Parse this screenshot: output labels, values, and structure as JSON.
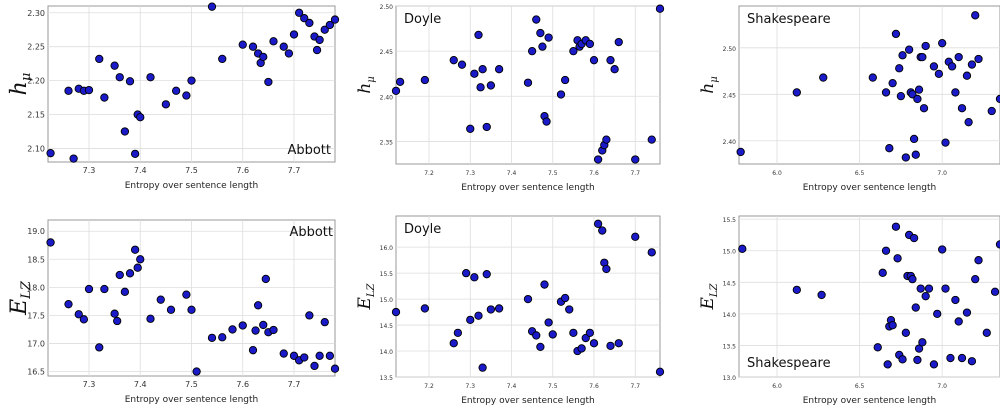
{
  "colors": {
    "point_fill": "#1a1ac8",
    "point_stroke": "#000000",
    "grid": "#dddddd",
    "frame": "#999999"
  },
  "chart_data": [
    {
      "type": "scatter",
      "annotation": "Abbott",
      "annotation_position": "bottom-right",
      "xlabel": "Entropy over sentence length",
      "ylabel": "h",
      "ylabel_sub": "μ",
      "xlim": [
        7.22,
        7.78
      ],
      "ylim": [
        2.08,
        2.31
      ],
      "xticks": [
        "7.3",
        "7.4",
        "7.5",
        "7.6",
        "7.7"
      ],
      "xtick_values": [
        7.3,
        7.4,
        7.5,
        7.6,
        7.7
      ],
      "yticks": [
        "2.10",
        "2.15",
        "2.20",
        "2.25",
        "2.30"
      ],
      "ytick_values": [
        2.1,
        2.15,
        2.2,
        2.25,
        2.3
      ],
      "grid": true,
      "x": [
        7.225,
        7.26,
        7.27,
        7.28,
        7.29,
        7.3,
        7.32,
        7.33,
        7.35,
        7.36,
        7.37,
        7.38,
        7.39,
        7.395,
        7.4,
        7.42,
        7.45,
        7.47,
        7.49,
        7.5,
        7.54,
        7.56,
        7.6,
        7.62,
        7.63,
        7.635,
        7.64,
        7.65,
        7.66,
        7.68,
        7.69,
        7.7,
        7.71,
        7.72,
        7.73,
        7.74,
        7.745,
        7.75,
        7.76,
        7.77,
        7.78
      ],
      "y": [
        2.093,
        2.185,
        2.085,
        2.188,
        2.185,
        2.186,
        2.232,
        2.175,
        2.222,
        2.205,
        2.125,
        2.199,
        2.092,
        2.15,
        2.146,
        2.205,
        2.165,
        2.185,
        2.178,
        2.2,
        2.309,
        2.232,
        2.253,
        2.25,
        2.24,
        2.226,
        2.235,
        2.198,
        2.258,
        2.25,
        2.24,
        2.268,
        2.3,
        2.292,
        2.285,
        2.265,
        2.245,
        2.26,
        2.275,
        2.282,
        2.29
      ]
    },
    {
      "type": "scatter",
      "annotation": "Doyle",
      "annotation_position": "top-left",
      "xlabel": "Entropy over sentence length",
      "ylabel": "h",
      "ylabel_sub": "μ",
      "xlim": [
        7.12,
        7.76
      ],
      "ylim": [
        2.325,
        2.5
      ],
      "xticks": [
        "7.2",
        "7.3",
        "7.4",
        "7.5",
        "7.6",
        "7.7"
      ],
      "xtick_values": [
        7.2,
        7.3,
        7.4,
        7.5,
        7.6,
        7.7
      ],
      "yticks": [
        "2.35",
        "2.40",
        "2.45",
        "2.50"
      ],
      "ytick_values": [
        2.35,
        2.4,
        2.45,
        2.5
      ],
      "grid": true,
      "x": [
        7.12,
        7.13,
        7.19,
        7.26,
        7.28,
        7.3,
        7.31,
        7.32,
        7.325,
        7.33,
        7.34,
        7.35,
        7.37,
        7.44,
        7.45,
        7.46,
        7.47,
        7.475,
        7.48,
        7.485,
        7.49,
        7.52,
        7.53,
        7.55,
        7.56,
        7.565,
        7.57,
        7.58,
        7.59,
        7.6,
        7.61,
        7.62,
        7.625,
        7.63,
        7.64,
        7.65,
        7.66,
        7.7,
        7.74,
        7.76
      ],
      "y": [
        2.406,
        2.416,
        2.418,
        2.44,
        2.435,
        2.364,
        2.425,
        2.468,
        2.41,
        2.43,
        2.366,
        2.412,
        2.43,
        2.415,
        2.45,
        2.485,
        2.47,
        2.455,
        2.378,
        2.372,
        2.465,
        2.402,
        2.418,
        2.45,
        2.462,
        2.455,
        2.458,
        2.462,
        2.458,
        2.44,
        2.33,
        2.34,
        2.346,
        2.352,
        2.44,
        2.43,
        2.46,
        2.33,
        2.352,
        2.497
      ]
    },
    {
      "type": "scatter",
      "annotation": "Shakespeare",
      "annotation_position": "top-left",
      "xlabel": "Entropy over sentence length",
      "ylabel": "h",
      "ylabel_sub": "μ",
      "xlim": [
        5.77,
        7.35
      ],
      "ylim": [
        2.375,
        2.545
      ],
      "xticks": [
        "6.0",
        "6.5",
        "7.0"
      ],
      "xtick_values": [
        6.0,
        6.5,
        7.0
      ],
      "yticks": [
        "2.40",
        "2.45",
        "2.50"
      ],
      "ytick_values": [
        2.4,
        2.45,
        2.5
      ],
      "grid": true,
      "x": [
        5.78,
        6.12,
        6.28,
        6.58,
        6.66,
        6.68,
        6.7,
        6.72,
        6.74,
        6.75,
        6.76,
        6.78,
        6.8,
        6.81,
        6.82,
        6.83,
        6.84,
        6.85,
        6.86,
        6.87,
        6.88,
        6.89,
        6.9,
        6.95,
        6.98,
        7.0,
        7.02,
        7.04,
        7.06,
        7.08,
        7.1,
        7.12,
        7.15,
        7.16,
        7.18,
        7.2,
        7.22,
        7.3,
        7.35
      ],
      "y": [
        2.388,
        2.452,
        2.468,
        2.468,
        2.452,
        2.392,
        2.462,
        2.515,
        2.478,
        2.448,
        2.492,
        2.382,
        2.498,
        2.452,
        2.45,
        2.402,
        2.385,
        2.445,
        2.455,
        2.49,
        2.49,
        2.435,
        2.502,
        2.48,
        2.472,
        2.505,
        2.398,
        2.485,
        2.48,
        2.452,
        2.49,
        2.435,
        2.47,
        2.42,
        2.482,
        2.535,
        2.488,
        2.432,
        2.445
      ]
    },
    {
      "type": "scatter",
      "annotation": "Abbott",
      "annotation_position": "top-right",
      "xlabel": "Entropy over sentence length",
      "ylabel": "E",
      "ylabel_sub": "LZ",
      "xlim": [
        7.22,
        7.78
      ],
      "ylim": [
        16.42,
        19.2
      ],
      "xticks": [
        "7.3",
        "7.4",
        "7.5",
        "7.6",
        "7.7"
      ],
      "xtick_values": [
        7.3,
        7.4,
        7.5,
        7.6,
        7.7
      ],
      "yticks": [
        "16.5",
        "17.0",
        "17.5",
        "18.0",
        "18.5",
        "19.0"
      ],
      "ytick_values": [
        16.5,
        17.0,
        17.5,
        18.0,
        18.5,
        19.0
      ],
      "grid": true,
      "x": [
        7.225,
        7.26,
        7.28,
        7.29,
        7.3,
        7.32,
        7.33,
        7.35,
        7.355,
        7.36,
        7.37,
        7.38,
        7.39,
        7.395,
        7.4,
        7.42,
        7.44,
        7.46,
        7.49,
        7.5,
        7.51,
        7.54,
        7.56,
        7.58,
        7.6,
        7.62,
        7.625,
        7.63,
        7.64,
        7.645,
        7.65,
        7.66,
        7.68,
        7.7,
        7.71,
        7.72,
        7.73,
        7.74,
        7.75,
        7.76,
        7.77,
        7.78
      ],
      "y": [
        18.8,
        17.7,
        17.52,
        17.43,
        17.97,
        16.93,
        17.97,
        17.53,
        17.4,
        18.22,
        17.92,
        18.25,
        18.67,
        18.35,
        18.5,
        17.44,
        17.78,
        17.6,
        17.87,
        17.6,
        16.5,
        17.1,
        17.11,
        17.25,
        17.32,
        16.88,
        17.23,
        17.68,
        17.33,
        18.15,
        17.2,
        17.24,
        16.82,
        16.78,
        16.7,
        16.75,
        17.5,
        16.6,
        16.78,
        17.38,
        16.78,
        16.55
      ]
    },
    {
      "type": "scatter",
      "annotation": "Doyle",
      "annotation_position": "top-left",
      "xlabel": "Entropy over sentence length",
      "ylabel": "E",
      "ylabel_sub": "LZ",
      "xlim": [
        7.12,
        7.76
      ],
      "ylim": [
        13.5,
        16.6
      ],
      "xticks": [
        "7.2",
        "7.3",
        "7.4",
        "7.5",
        "7.6",
        "7.7"
      ],
      "xtick_values": [
        7.2,
        7.3,
        7.4,
        7.5,
        7.6,
        7.7
      ],
      "yticks": [
        "13.5",
        "14.0",
        "14.5",
        "15.0",
        "15.5",
        "16.0"
      ],
      "ytick_values": [
        13.5,
        14.0,
        14.5,
        15.0,
        15.5,
        16.0
      ],
      "grid": true,
      "x": [
        7.12,
        7.19,
        7.26,
        7.27,
        7.29,
        7.3,
        7.31,
        7.32,
        7.33,
        7.34,
        7.35,
        7.37,
        7.44,
        7.45,
        7.46,
        7.47,
        7.48,
        7.49,
        7.5,
        7.52,
        7.53,
        7.54,
        7.55,
        7.56,
        7.57,
        7.58,
        7.59,
        7.6,
        7.61,
        7.62,
        7.625,
        7.63,
        7.64,
        7.66,
        7.7,
        7.74,
        7.76
      ],
      "y": [
        14.75,
        14.82,
        14.15,
        14.35,
        15.5,
        14.6,
        15.42,
        14.68,
        13.68,
        15.48,
        14.8,
        14.82,
        15.0,
        14.38,
        14.3,
        14.08,
        15.28,
        14.55,
        14.32,
        14.95,
        15.02,
        14.8,
        14.35,
        14.0,
        14.05,
        14.25,
        14.35,
        14.15,
        16.45,
        16.32,
        15.7,
        15.58,
        14.1,
        14.15,
        16.2,
        15.9,
        13.6
      ]
    },
    {
      "type": "scatter",
      "annotation": "Shakespeare",
      "annotation_position": "bottom-left",
      "xlabel": "Entropy over sentence length",
      "ylabel": "E",
      "ylabel_sub": "LZ",
      "xlim": [
        5.77,
        7.35
      ],
      "ylim": [
        13.0,
        15.55
      ],
      "xticks": [
        "6.0",
        "6.5",
        "7.0"
      ],
      "xtick_values": [
        6.0,
        6.5,
        7.0
      ],
      "yticks": [
        "13.0",
        "13.5",
        "14.0",
        "14.5",
        "15.0",
        "15.5"
      ],
      "ytick_values": [
        13.0,
        13.5,
        14.0,
        14.5,
        15.0,
        15.5
      ],
      "grid": true,
      "x": [
        5.79,
        6.12,
        6.27,
        6.61,
        6.64,
        6.66,
        6.67,
        6.68,
        6.69,
        6.7,
        6.72,
        6.73,
        6.74,
        6.76,
        6.78,
        6.79,
        6.8,
        6.81,
        6.82,
        6.83,
        6.84,
        6.85,
        6.86,
        6.87,
        6.88,
        6.9,
        6.92,
        6.95,
        6.97,
        7.0,
        7.02,
        7.05,
        7.08,
        7.1,
        7.12,
        7.15,
        7.18,
        7.2,
        7.22,
        7.27,
        7.32,
        7.35
      ],
      "y": [
        15.03,
        14.38,
        14.3,
        13.47,
        14.65,
        15.0,
        13.2,
        13.8,
        13.9,
        13.82,
        15.38,
        14.88,
        13.35,
        13.28,
        13.7,
        14.6,
        15.25,
        14.6,
        14.55,
        15.2,
        14.1,
        13.27,
        13.45,
        14.4,
        13.55,
        14.28,
        14.4,
        13.2,
        14.0,
        15.02,
        14.4,
        13.3,
        14.22,
        13.88,
        13.3,
        14.02,
        13.25,
        14.55,
        14.85,
        13.7,
        14.35,
        15.1
      ]
    }
  ]
}
